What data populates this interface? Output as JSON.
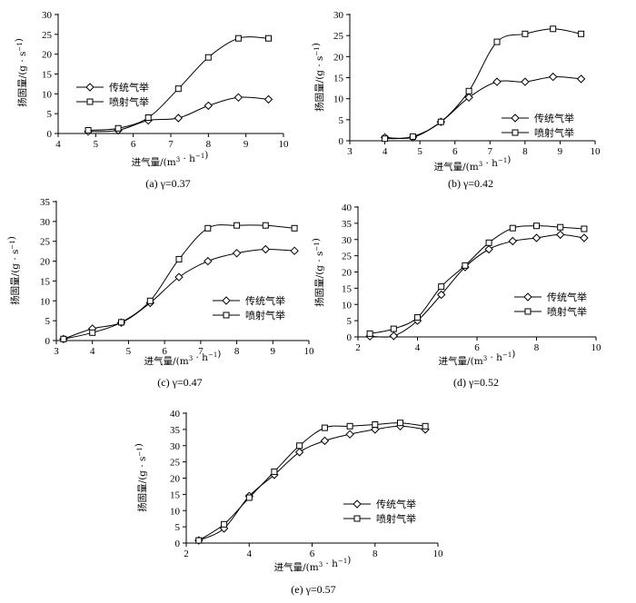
{
  "chart_data": [
    {
      "type": "line",
      "caption": "(a) γ=0.37",
      "xlabel": "进气量/(m³·h⁻¹)",
      "ylabel": "扬固量/(g·s⁻¹)",
      "xlim": [
        4,
        10
      ],
      "ylim": [
        0,
        30
      ],
      "xticks": [
        4,
        5,
        6,
        7,
        8,
        9,
        10
      ],
      "yticks": [
        0,
        5,
        10,
        15,
        20,
        25,
        30
      ],
      "legend": "left",
      "series": [
        {
          "name": "传统气举",
          "marker": "diamond",
          "x": [
            4.8,
            5.6,
            6.4,
            7.2,
            8.0,
            8.8,
            9.6
          ],
          "y": [
            0.5,
            0.8,
            3.3,
            3.9,
            7.0,
            9.1,
            8.6
          ]
        },
        {
          "name": "喷射气举",
          "marker": "square",
          "x": [
            4.8,
            5.6,
            6.4,
            7.2,
            8.0,
            8.8,
            9.6
          ],
          "y": [
            0.8,
            1.3,
            4.0,
            11.3,
            19.2,
            24.0,
            24.0
          ]
        }
      ]
    },
    {
      "type": "line",
      "caption": "(b) γ=0.42",
      "xlabel": "进气量/(m³·h⁻¹)",
      "ylabel": "扬固量/(g·s⁻¹)",
      "xlim": [
        3,
        10
      ],
      "ylim": [
        0,
        30
      ],
      "xticks": [
        3,
        4,
        5,
        6,
        7,
        8,
        9,
        10
      ],
      "yticks": [
        0,
        5,
        10,
        15,
        20,
        25,
        30
      ],
      "legend": "bottom-right",
      "series": [
        {
          "name": "传统气举",
          "marker": "diamond",
          "x": [
            4.0,
            4.8,
            5.6,
            6.4,
            7.2,
            8.0,
            8.8,
            9.6
          ],
          "y": [
            0.8,
            0.8,
            4.5,
            10.3,
            14.0,
            14.0,
            15.2,
            14.7
          ]
        },
        {
          "name": "喷射气举",
          "marker": "square",
          "x": [
            4.0,
            4.8,
            5.6,
            6.4,
            7.2,
            8.0,
            8.8,
            9.6
          ],
          "y": [
            0.5,
            1.0,
            4.5,
            11.8,
            23.5,
            25.4,
            26.6,
            25.4
          ]
        }
      ]
    },
    {
      "type": "line",
      "caption": "(c) γ=0.47",
      "xlabel": "进气量/(m³·h⁻¹)",
      "ylabel": "扬固量/(g·s⁻¹)",
      "xlim": [
        3,
        10
      ],
      "ylim": [
        0,
        35
      ],
      "xticks": [
        3,
        4,
        5,
        6,
        7,
        8,
        9,
        10
      ],
      "yticks": [
        0,
        5,
        10,
        15,
        20,
        25,
        30,
        35
      ],
      "legend": "right",
      "series": [
        {
          "name": "传统气举",
          "marker": "diamond",
          "x": [
            3.2,
            4.0,
            4.8,
            5.6,
            6.4,
            7.2,
            8.0,
            8.8,
            9.6
          ],
          "y": [
            0.4,
            3.0,
            4.5,
            9.5,
            16.0,
            20.0,
            22.0,
            23.0,
            22.6
          ]
        },
        {
          "name": "喷射气举",
          "marker": "square",
          "x": [
            3.2,
            4.0,
            4.8,
            5.6,
            6.4,
            7.2,
            8.0,
            8.8,
            9.6
          ],
          "y": [
            0.4,
            2.0,
            4.6,
            10.0,
            20.5,
            28.3,
            29.0,
            29.0,
            28.3
          ]
        }
      ]
    },
    {
      "type": "line",
      "caption": "(d) γ=0.52",
      "xlabel": "进气量/(m³·h⁻¹)",
      "ylabel": "扬固量/(g·s⁻¹)",
      "xlim": [
        2,
        10
      ],
      "ylim": [
        0,
        40
      ],
      "xticks": [
        2,
        4,
        6,
        8,
        10
      ],
      "yticks": [
        0,
        5,
        10,
        15,
        20,
        25,
        30,
        35,
        40
      ],
      "legend": "right",
      "series": [
        {
          "name": "传统气举",
          "marker": "diamond",
          "x": [
            2.4,
            3.2,
            4.0,
            4.8,
            5.6,
            6.4,
            7.2,
            8.0,
            8.8,
            9.6
          ],
          "y": [
            0.2,
            0.3,
            5.0,
            13.0,
            21.5,
            27.0,
            29.5,
            30.5,
            31.5,
            30.5
          ]
        },
        {
          "name": "喷射气举",
          "marker": "square",
          "x": [
            2.4,
            3.2,
            4.0,
            4.8,
            5.6,
            6.4,
            7.2,
            8.0,
            8.8,
            9.6
          ],
          "y": [
            1.0,
            2.5,
            6.0,
            15.5,
            22.0,
            29.0,
            33.5,
            34.2,
            33.8,
            33.3
          ]
        }
      ]
    },
    {
      "type": "line",
      "caption": "(e) γ=0.57",
      "xlabel": "进气量/(m³·h⁻¹)",
      "ylabel": "扬固量/(g·s⁻¹)",
      "xlim": [
        2,
        10
      ],
      "ylim": [
        0,
        40
      ],
      "xticks": [
        2,
        4,
        6,
        8,
        10
      ],
      "yticks": [
        0,
        5,
        10,
        15,
        20,
        25,
        30,
        35,
        40
      ],
      "legend": "bottom-right",
      "series": [
        {
          "name": "传统气举",
          "marker": "diamond",
          "x": [
            2.4,
            3.2,
            4.0,
            4.8,
            5.6,
            6.4,
            7.2,
            8.0,
            8.8,
            9.6
          ],
          "y": [
            0.8,
            4.5,
            14.5,
            21.0,
            28.0,
            31.5,
            33.5,
            35.0,
            36.0,
            35.0
          ]
        },
        {
          "name": "喷射气举",
          "marker": "square",
          "x": [
            2.4,
            3.2,
            4.0,
            4.8,
            5.6,
            6.4,
            7.2,
            8.0,
            8.8,
            9.6
          ],
          "y": [
            0.8,
            5.8,
            14.0,
            22.0,
            30.0,
            35.5,
            36.0,
            36.5,
            37.0,
            36.0
          ]
        }
      ]
    }
  ]
}
